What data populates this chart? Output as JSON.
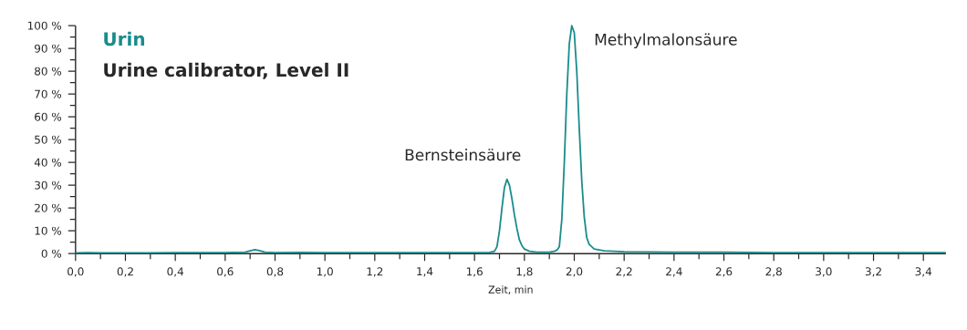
{
  "chart_data": {
    "type": "line",
    "title": "Urin",
    "subtitle": "Urine calibrator, Level II",
    "xlabel": "Zeit, min",
    "color": "#1a8c8c",
    "x": [
      0.0,
      0.05,
      0.1,
      0.2,
      0.3,
      0.4,
      0.5,
      0.6,
      0.68,
      0.7,
      0.72,
      0.74,
      0.76,
      0.8,
      0.9,
      1.0,
      1.2,
      1.4,
      1.6,
      1.66,
      1.68,
      1.69,
      1.7,
      1.71,
      1.72,
      1.73,
      1.74,
      1.75,
      1.76,
      1.77,
      1.78,
      1.79,
      1.8,
      1.82,
      1.85,
      1.9,
      1.92,
      1.93,
      1.94,
      1.95,
      1.96,
      1.97,
      1.98,
      1.99,
      2.0,
      2.01,
      2.02,
      2.03,
      2.04,
      2.05,
      2.06,
      2.08,
      2.12,
      2.2,
      2.4,
      2.6,
      2.8,
      3.0,
      3.2,
      3.49
    ],
    "values": [
      0.3,
      0.4,
      0.3,
      0.3,
      0.3,
      0.4,
      0.4,
      0.4,
      0.6,
      1.2,
      1.7,
      1.2,
      0.6,
      0.4,
      0.5,
      0.4,
      0.4,
      0.4,
      0.4,
      0.5,
      1,
      3,
      10,
      20,
      29,
      32.6,
      30,
      24,
      17,
      11,
      6,
      3.5,
      2,
      1,
      0.6,
      0.6,
      1,
      1.5,
      3,
      15,
      40,
      70,
      92,
      100,
      97,
      80,
      55,
      32,
      16,
      7,
      4,
      2,
      1.2,
      0.8,
      0.6,
      0.6,
      0.4,
      0.4,
      0.4,
      0.4
    ],
    "annotations": [
      {
        "text": "Bernsteinsäure",
        "x": 1.73,
        "y": 32.6
      },
      {
        "text": "Methylmalonsäure",
        "x": 1.99,
        "y": 100
      }
    ],
    "xlim": [
      0,
      3.49
    ],
    "ylim": [
      0,
      100
    ],
    "xticks": [
      {
        "value": 0,
        "label": "0,0"
      },
      {
        "value": 0.1,
        "label": null
      },
      {
        "value": 0.2,
        "label": "0,2"
      },
      {
        "value": 0.3,
        "label": null
      },
      {
        "value": 0.4,
        "label": "0,4"
      },
      {
        "value": 0.5,
        "label": null
      },
      {
        "value": 0.6,
        "label": "0,6"
      },
      {
        "value": 0.7,
        "label": null
      },
      {
        "value": 0.8,
        "label": "0,8"
      },
      {
        "value": 0.9,
        "label": null
      },
      {
        "value": 1.0,
        "label": "1,0"
      },
      {
        "value": 1.1,
        "label": null
      },
      {
        "value": 1.2,
        "label": "1,2"
      },
      {
        "value": 1.3,
        "label": null
      },
      {
        "value": 1.4,
        "label": "1,4"
      },
      {
        "value": 1.5,
        "label": null
      },
      {
        "value": 1.6,
        "label": "1,6"
      },
      {
        "value": 1.7,
        "label": null
      },
      {
        "value": 1.8,
        "label": "1,8"
      },
      {
        "value": 1.9,
        "label": null
      },
      {
        "value": 2.0,
        "label": "2,0"
      },
      {
        "value": 2.1,
        "label": null
      },
      {
        "value": 2.2,
        "label": "2,2"
      },
      {
        "value": 2.3,
        "label": null
      },
      {
        "value": 2.4,
        "label": "2,4"
      },
      {
        "value": 2.5,
        "label": null
      },
      {
        "value": 2.6,
        "label": "2,6"
      },
      {
        "value": 2.7,
        "label": null
      },
      {
        "value": 2.8,
        "label": "2,8"
      },
      {
        "value": 2.9,
        "label": null
      },
      {
        "value": 3.0,
        "label": "3,0"
      },
      {
        "value": 3.1,
        "label": null
      },
      {
        "value": 3.2,
        "label": "3,2"
      },
      {
        "value": 3.3,
        "label": null
      },
      {
        "value": 3.4,
        "label": "3,4"
      }
    ],
    "yticks": [
      {
        "value": 0,
        "label": "0 %"
      },
      {
        "value": 5,
        "label": null
      },
      {
        "value": 10,
        "label": "10 %"
      },
      {
        "value": 15,
        "label": null
      },
      {
        "value": 20,
        "label": "20 %"
      },
      {
        "value": 25,
        "label": null
      },
      {
        "value": 30,
        "label": "30 %"
      },
      {
        "value": 35,
        "label": null
      },
      {
        "value": 40,
        "label": "40 %"
      },
      {
        "value": 45,
        "label": null
      },
      {
        "value": 50,
        "label": "50 %"
      },
      {
        "value": 55,
        "label": null
      },
      {
        "value": 60,
        "label": "60 %"
      },
      {
        "value": 65,
        "label": null
      },
      {
        "value": 70,
        "label": "70 %"
      },
      {
        "value": 75,
        "label": null
      },
      {
        "value": 80,
        "label": "80 %"
      },
      {
        "value": 85,
        "label": null
      },
      {
        "value": 90,
        "label": "90 %"
      },
      {
        "value": 95,
        "label": null
      },
      {
        "value": 100,
        "label": "100 %"
      }
    ]
  }
}
